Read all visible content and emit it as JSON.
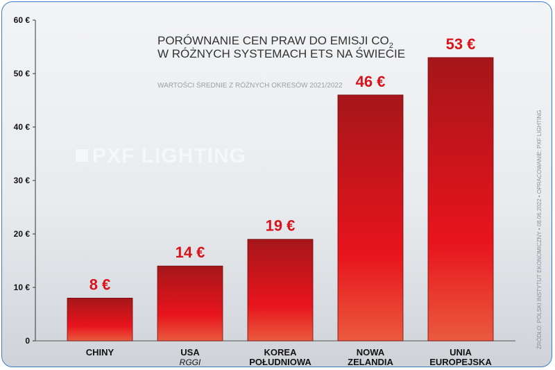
{
  "chart_data": {
    "type": "bar",
    "title_line1": "PORÓWNANIE CEN PRAW DO EMISJI CO",
    "title_subscript": "2",
    "title_line2": "W RÓŻNYCH SYSTEMACH ETS NA ŚWIECIE",
    "subtitle": "WARTOŚCI ŚREDNIE Z RÓŻNYCH OKRESÓW 2021/2022",
    "categories": [
      {
        "line1": "CHINY",
        "line2": "",
        "sub": ""
      },
      {
        "line1": "USA",
        "line2": "",
        "sub": "RGGI"
      },
      {
        "line1": "KOREA",
        "line2": "POŁUDNIOWA",
        "sub": ""
      },
      {
        "line1": "NOWA",
        "line2": "ZELANDIA",
        "sub": ""
      },
      {
        "line1": "UNIA",
        "line2": "EUROPEJSKA",
        "sub": ""
      }
    ],
    "values": [
      8,
      14,
      19,
      46,
      53
    ],
    "value_labels": [
      "8 €",
      "14 €",
      "19 €",
      "46 €",
      "53 €"
    ],
    "ylim": [
      0,
      60
    ],
    "yticks": [
      0,
      10,
      20,
      30,
      40,
      50,
      60
    ],
    "ytick_labels": [
      "0",
      "10 €",
      "20 €",
      "30 €",
      "40 €",
      "50 €",
      "60 €"
    ],
    "grid": false,
    "colors": {
      "bar_top": "#a5161a",
      "bar_mid": "#e8141c",
      "bar_bottom": "#e8503a",
      "label": "#d8141b"
    }
  },
  "watermark": "PXF LIGHTING",
  "source_note": "ŹRÓDŁO: POLSKI INSTYTUT EKONOMICZNY • 08.06.2022 • OPRACOWANIE: PXF LIGHTING"
}
